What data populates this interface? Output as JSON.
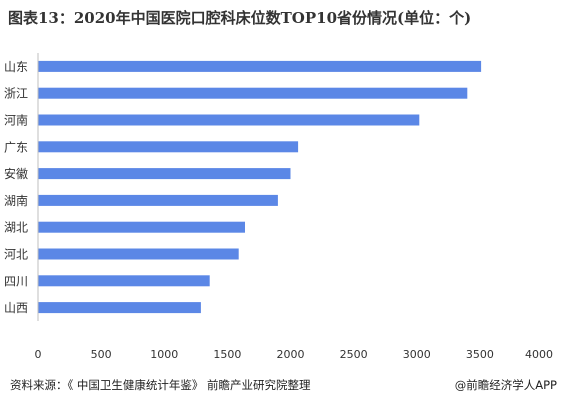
{
  "title": "图表13：2020年中国医院口腔科床位数TOP10省份情况(单位：个)",
  "footer": {
    "source": "资料来源：《 中国卫生健康统计年鉴》 前瞻产业研究院整理",
    "brand": "@前瞻经济学人APP"
  },
  "colors": {
    "bar": "#5b87e6",
    "axis": "#bfbfbf",
    "text": "#333333"
  },
  "chart_data": {
    "type": "bar",
    "orientation": "horizontal",
    "categories": [
      "山东",
      "浙江",
      "河南",
      "广东",
      "安徽",
      "湖南",
      "湖北",
      "河北",
      "四川",
      "山西"
    ],
    "values": [
      3510,
      3400,
      3020,
      2060,
      2000,
      1900,
      1640,
      1590,
      1360,
      1290
    ],
    "xlim": [
      0,
      4000
    ],
    "xticks": [
      "0",
      "500",
      "1000",
      "1500",
      "2000",
      "2500",
      "3000",
      "3500",
      "4000"
    ],
    "grid": false,
    "legend": "none"
  }
}
